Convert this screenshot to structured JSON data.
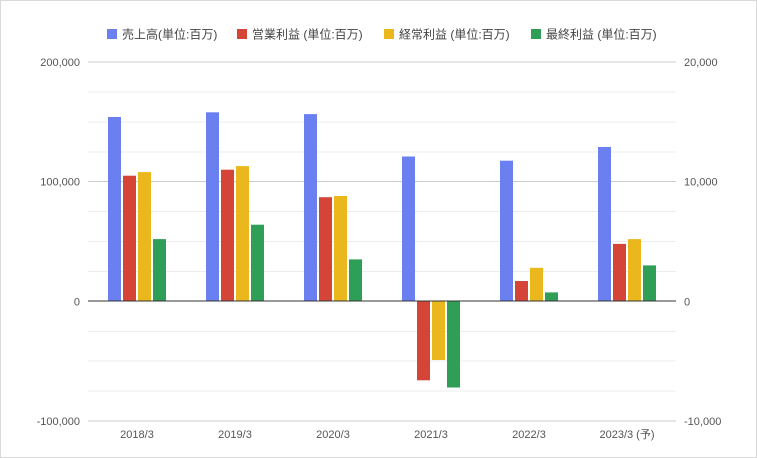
{
  "chart_data": {
    "type": "bar",
    "categories": [
      "2018/3",
      "2019/3",
      "2020/3",
      "2021/3",
      "2022/3",
      "2023/3 (予)"
    ],
    "left_axis": {
      "ylim": [
        -100000,
        200000
      ],
      "ticks": [
        200000,
        100000,
        0,
        -100000
      ],
      "tick_labels": [
        "200,000",
        "100,000",
        "0",
        "-100,000"
      ]
    },
    "right_axis": {
      "ylim": [
        -10000,
        20000
      ],
      "ticks": [
        20000,
        10000,
        0,
        -10000
      ],
      "tick_labels": [
        "20,000",
        "10,000",
        "0",
        "-10,000"
      ]
    },
    "series": [
      {
        "name": "売上高(単位:百万)",
        "color": "#6a7ff0",
        "axis": "left",
        "values": [
          154000,
          158000,
          156500,
          121000,
          117500,
          129000
        ]
      },
      {
        "name": "営業利益 (単位:百万)",
        "color": "#d44538",
        "axis": "right",
        "values": [
          10500,
          11000,
          8700,
          -6600,
          1700,
          4800
        ]
      },
      {
        "name": "経常利益 (単位:百万)",
        "color": "#eab71c",
        "axis": "right",
        "values": [
          10800,
          11300,
          8800,
          -4900,
          2800,
          5200
        ]
      },
      {
        "name": "最終利益 (単位:百万)",
        "color": "#2f9e57",
        "axis": "right",
        "values": [
          5200,
          6400,
          3500,
          -7200,
          750,
          3000
        ]
      }
    ],
    "grid": true,
    "legend_position": "top"
  }
}
